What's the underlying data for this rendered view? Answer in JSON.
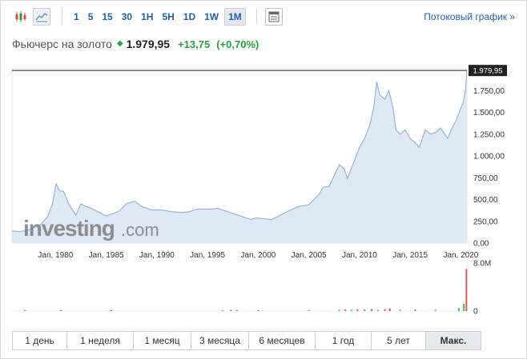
{
  "toolbar": {
    "chart_type_icons": [
      "candlestick-icon",
      "area-chart-icon"
    ],
    "intervals": [
      {
        "label": "1",
        "active": false
      },
      {
        "label": "5",
        "active": false
      },
      {
        "label": "15",
        "active": false
      },
      {
        "label": "30",
        "active": false
      },
      {
        "label": "1H",
        "active": false
      },
      {
        "label": "5H",
        "active": false
      },
      {
        "label": "1D",
        "active": false
      },
      {
        "label": "1W",
        "active": false
      },
      {
        "label": "1M",
        "active": true
      }
    ],
    "table_icon": "table-icon",
    "stream_link": "Потоковый график »"
  },
  "instrument": {
    "name": "Фьючерс на золото",
    "price": "1.979,95",
    "change": "+13,75",
    "change_percent": "(+0,70%)",
    "direction_icon": "up-triangle-icon"
  },
  "watermark": {
    "brand": "investing",
    "suffix": ".com"
  },
  "colors": {
    "accent": "#1f5fa8",
    "positive": "#28a23a",
    "area_fill": "#dfe9f5",
    "line": "#8fb1d6",
    "volume_up": "#4caf50",
    "volume_down": "#e05a5a"
  },
  "chart_data": {
    "type": "area",
    "price_axis": {
      "ticks": [
        "0,00",
        "250,00",
        "500,00",
        "750,00",
        "1.000,00",
        "1.250,00",
        "1.500,00",
        "1.750,00"
      ],
      "tick_values": [
        0,
        250,
        500,
        750,
        1000,
        1250,
        1500,
        1750
      ],
      "ylim": [
        0,
        2000
      ],
      "last_value_label": "1.979,95",
      "last_value": 1979.95
    },
    "x_axis": {
      "ticks": [
        "Jan, 1980",
        "Jan, 1985",
        "Jan, 1990",
        "Jan, 1995",
        "Jan, 2000",
        "Jan, 2005",
        "Jan, 2010",
        "Jan, 2015",
        "Jan, 2020"
      ],
      "tick_years": [
        1980,
        1985,
        1990,
        1995,
        2000,
        2005,
        2010,
        2015,
        2020
      ],
      "xlim": [
        1975.7,
        2020.6
      ]
    },
    "series": [
      {
        "x": [
          1975.7,
          1976.5,
          1977.5,
          1978.5,
          1979.2,
          1979.7,
          1980.05,
          1980.4,
          1980.8,
          1981.3,
          1982.0,
          1982.5,
          1983.0,
          1983.5,
          1984.5,
          1985.0,
          1985.5,
          1986.3,
          1987.0,
          1987.8,
          1988.5,
          1989.5,
          1990.5,
          1991.5,
          1992.5,
          1993.2,
          1994.0,
          1995.5,
          1996.0,
          1996.5,
          1997.5,
          1998.5,
          1999.3,
          1999.8,
          2000.5,
          2001.3,
          2002.0,
          2003.0,
          2004.0,
          2005.0,
          2006.0,
          2006.4,
          2007.0,
          2008.0,
          2008.5,
          2008.8,
          2009.5,
          2010.0,
          2010.5,
          2011.0,
          2011.4,
          2011.7,
          2012.0,
          2012.5,
          2012.9,
          2013.3,
          2013.6,
          2014.0,
          2014.5,
          2015.0,
          2015.5,
          2015.9,
          2016.5,
          2017.0,
          2017.5,
          2018.0,
          2018.7,
          2019.0,
          2019.5,
          2019.9,
          2020.2,
          2020.45,
          2020.6
        ],
        "values": [
          140,
          130,
          160,
          210,
          300,
          450,
          680,
          600,
          590,
          450,
          320,
          450,
          420,
          400,
          340,
          310,
          330,
          370,
          450,
          480,
          420,
          380,
          380,
          360,
          350,
          360,
          390,
          390,
          400,
          380,
          340,
          300,
          270,
          290,
          280,
          270,
          310,
          370,
          420,
          440,
          560,
          640,
          650,
          900,
          850,
          740,
          950,
          1100,
          1200,
          1350,
          1550,
          1850,
          1700,
          1650,
          1750,
          1550,
          1300,
          1250,
          1300,
          1200,
          1150,
          1100,
          1300,
          1250,
          1270,
          1320,
          1200,
          1290,
          1400,
          1520,
          1600,
          1750,
          1980
        ]
      }
    ],
    "volume": {
      "axis_ticks": [
        "8.0M",
        "0"
      ],
      "axis_values": [
        8.0,
        0
      ],
      "unit": "M",
      "ylim": [
        0,
        8.0
      ],
      "bars": [
        {
          "x": 1977.0,
          "v": 0.15,
          "up": true
        },
        {
          "x": 1980.5,
          "v": 0.1,
          "up": false
        },
        {
          "x": 1985.5,
          "v": 0.1,
          "up": false
        },
        {
          "x": 1996.5,
          "v": 0.12,
          "up": false
        },
        {
          "x": 1997.3,
          "v": 0.2,
          "up": false
        },
        {
          "x": 1997.9,
          "v": 0.15,
          "up": false
        },
        {
          "x": 2000.0,
          "v": 0.1,
          "up": false
        },
        {
          "x": 2005.0,
          "v": 0.15,
          "up": false
        },
        {
          "x": 2008.0,
          "v": 0.2,
          "up": true
        },
        {
          "x": 2008.6,
          "v": 0.25,
          "up": false
        },
        {
          "x": 2009.2,
          "v": 0.2,
          "up": true
        },
        {
          "x": 2009.8,
          "v": 0.3,
          "up": false
        },
        {
          "x": 2010.5,
          "v": 0.25,
          "up": true
        },
        {
          "x": 2011.2,
          "v": 0.35,
          "up": false
        },
        {
          "x": 2011.8,
          "v": 0.2,
          "up": true
        },
        {
          "x": 2012.5,
          "v": 0.3,
          "up": false
        },
        {
          "x": 2013.0,
          "v": 0.4,
          "up": false
        },
        {
          "x": 2014.0,
          "v": 0.2,
          "up": true
        },
        {
          "x": 2015.5,
          "v": 0.25,
          "up": false
        },
        {
          "x": 2017.5,
          "v": 0.2,
          "up": true
        },
        {
          "x": 2019.8,
          "v": 0.5,
          "up": true
        },
        {
          "x": 2020.3,
          "v": 1.2,
          "up": true
        },
        {
          "x": 2020.55,
          "v": 7.0,
          "up": false
        }
      ]
    }
  },
  "periods": [
    {
      "label": "1 день",
      "active": false
    },
    {
      "label": "1 неделя",
      "active": false
    },
    {
      "label": "1 месяц",
      "active": false
    },
    {
      "label": "3 месяца",
      "active": false
    },
    {
      "label": "6 месяцев",
      "active": false
    },
    {
      "label": "1 год",
      "active": false
    },
    {
      "label": "5 лет",
      "active": false
    },
    {
      "label": "Макс.",
      "active": true
    }
  ]
}
